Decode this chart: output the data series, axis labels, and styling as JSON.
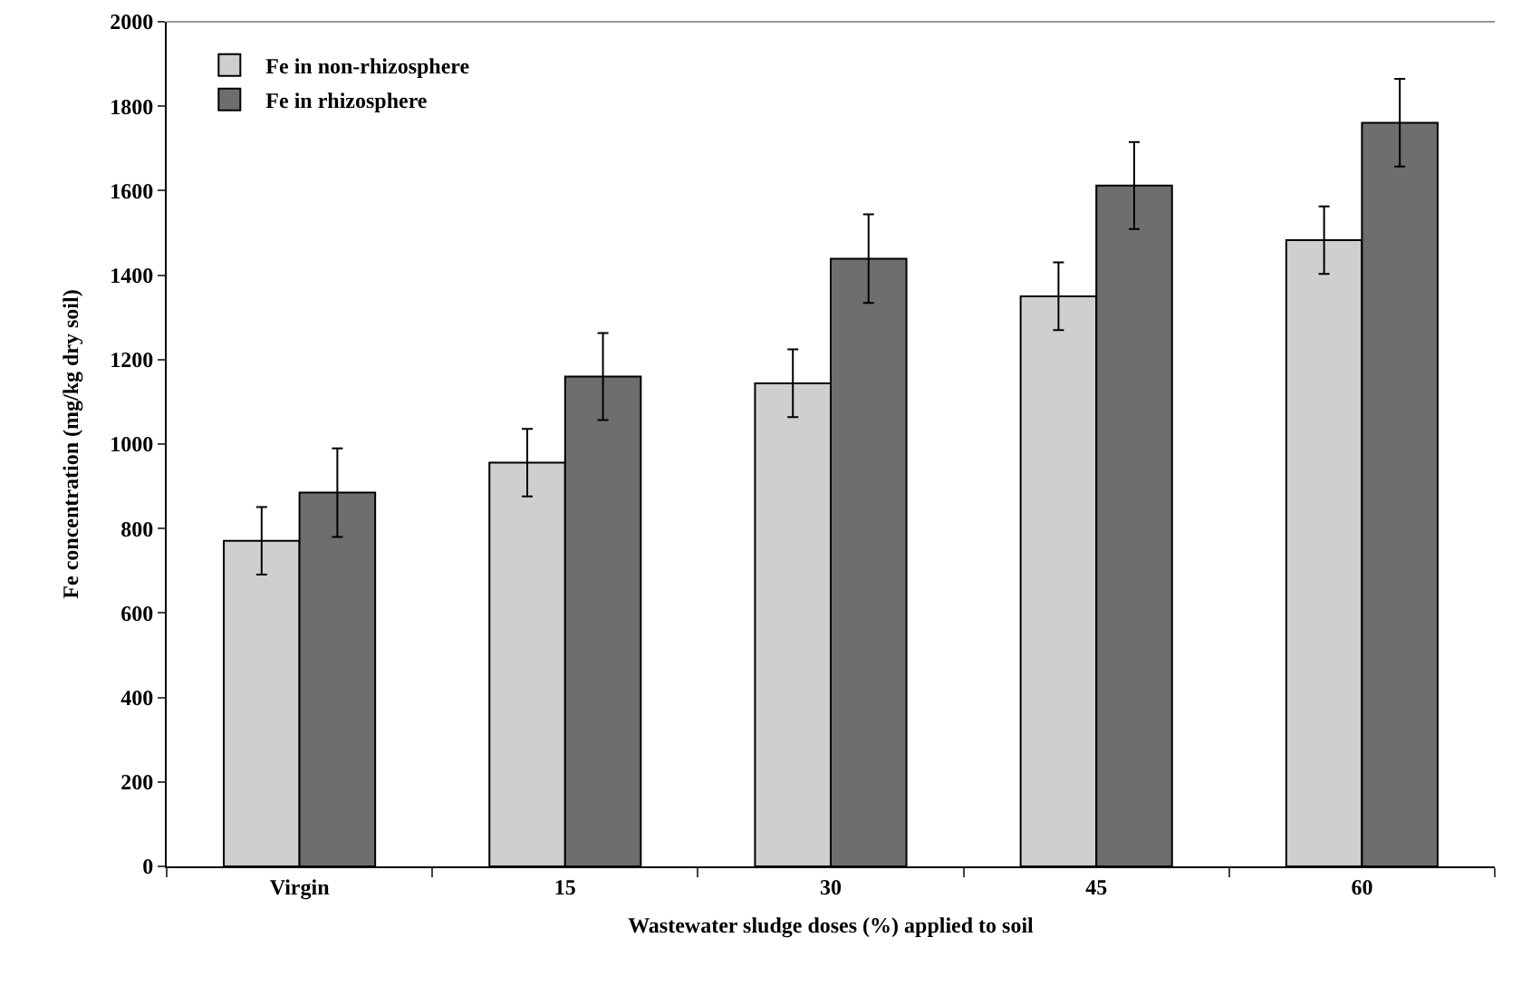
{
  "chart_data": {
    "type": "bar",
    "xlabel": "Wastewater sludge doses (%) applied to soil",
    "ylabel": "Fe concentration (mg/kg dry soil)",
    "categories": [
      "Virgin",
      "15",
      "30",
      "45",
      "60"
    ],
    "series": [
      {
        "name": "Fe in non-rhizosphere",
        "color": "#cfcfcf",
        "values": [
          771,
          956,
          1144,
          1350,
          1483
        ],
        "errors": [
          80,
          80,
          80,
          80,
          80
        ]
      },
      {
        "name": "Fe in rhizosphere",
        "color": "#6e6e6e",
        "values": [
          885,
          1160,
          1439,
          1612,
          1761
        ],
        "errors": [
          105,
          103,
          105,
          103,
          104
        ]
      }
    ],
    "ylim": [
      0,
      2000
    ],
    "yticks": [
      0,
      200,
      400,
      600,
      800,
      1000,
      1200,
      1400,
      1600,
      1800,
      2000
    ],
    "grid": false,
    "legend": "top left"
  }
}
